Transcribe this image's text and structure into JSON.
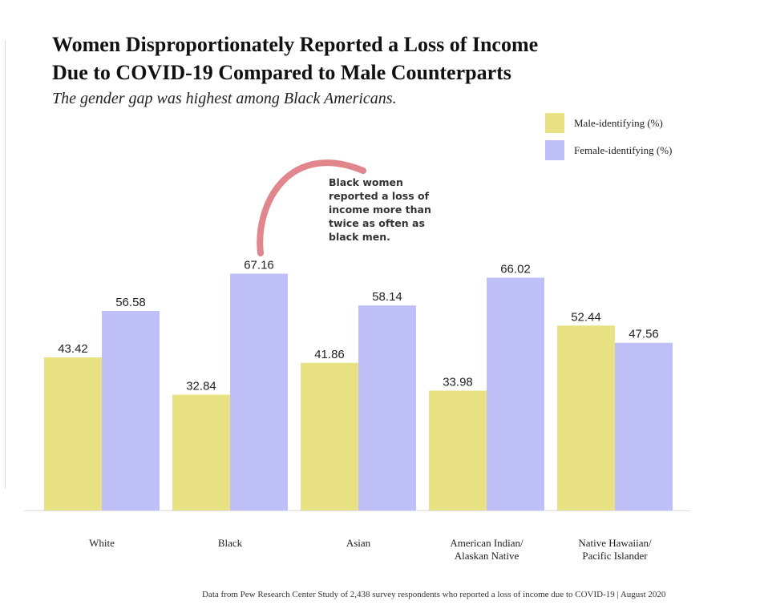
{
  "title_line1": "Women Disproportionately Reported a Loss of Income",
  "title_line2": "Due to COVID-19 Compared to Male Counterparts",
  "subtitle": "The gender gap was highest among Black Americans.",
  "annotation": "Black women reported a loss of income more than twice as often as black men.",
  "footer": "Data from Pew Research Center Study of 2,438 survey respondents who reported a loss of income due to COVID-19 | August 2020",
  "colors": {
    "male": "#e8e285",
    "female": "#bfc0f8",
    "arrow": "#e0868c",
    "baseline": "#e0e0e0"
  },
  "chart_data": {
    "type": "bar",
    "title": "Women Disproportionately Reported a Loss of Income Due to COVID-19 Compared to Male Counterparts",
    "subtitle": "The gender gap was highest among Black Americans.",
    "xlabel": "",
    "ylabel": "",
    "ylim": [
      0,
      75
    ],
    "grid": false,
    "legend_placement": "top-right",
    "categories": [
      [
        "White"
      ],
      [
        "Black"
      ],
      [
        "Asian"
      ],
      [
        "American Indian/",
        "Alaskan Native"
      ],
      [
        "Native Hawaiian/",
        "Pacific Islander"
      ]
    ],
    "series": [
      {
        "name": "Male-identifying (%)",
        "color": "#e8e285",
        "values": [
          43.42,
          32.84,
          41.86,
          33.98,
          52.44
        ]
      },
      {
        "name": "Female-identifying (%)",
        "color": "#bfc0f8",
        "values": [
          56.58,
          67.16,
          58.14,
          66.02,
          47.56
        ]
      }
    ]
  }
}
